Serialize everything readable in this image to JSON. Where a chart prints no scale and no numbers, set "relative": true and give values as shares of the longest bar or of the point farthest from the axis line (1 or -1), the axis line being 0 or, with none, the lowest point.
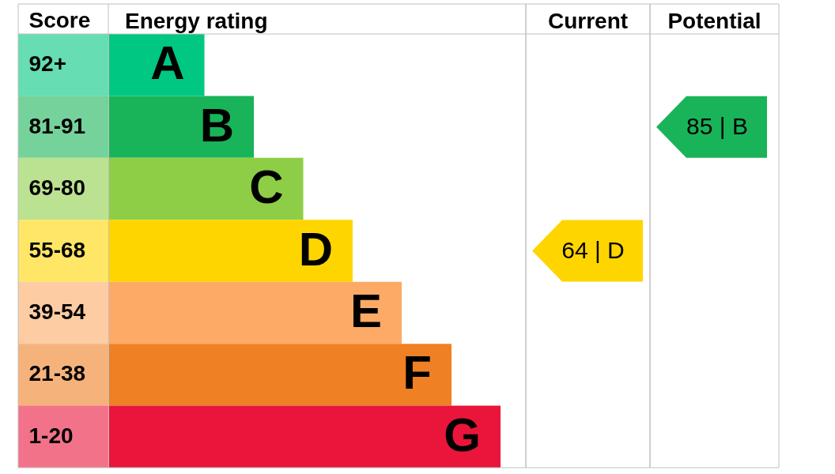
{
  "chart_data": [
    {
      "type": "bar",
      "orientation": "horizontal",
      "relative": true,
      "title": "Energy rating",
      "ylabel": "Score",
      "categories": [
        "92+",
        "81-91",
        "69-80",
        "55-68",
        "39-54",
        "21-38",
        "1-20"
      ],
      "values": [
        0.245,
        0.371,
        0.497,
        0.623,
        0.748,
        0.875,
        1
      ],
      "colors": [
        "#00c781",
        "#19b459",
        "#8dce46",
        "#ffd500",
        "#fcaa65",
        "#ef8023",
        "#e9153b"
      ],
      "annotations": [
        "A",
        "B",
        "C",
        "D",
        "E",
        "F",
        "G"
      ]
    },
    {
      "type": "other",
      "title": "Current",
      "values": [
        null,
        null,
        null,
        64,
        null,
        null,
        null
      ],
      "value_labels": [
        null,
        null,
        null,
        "64 | D",
        null,
        null,
        null
      ],
      "colors": [
        null,
        null,
        null,
        "#ffd500",
        null,
        null,
        null
      ]
    },
    {
      "type": "other",
      "title": "Potential",
      "values": [
        null,
        85,
        null,
        null,
        null,
        null,
        null
      ],
      "value_labels": [
        null,
        "85 | B",
        null,
        null,
        null,
        null,
        null
      ],
      "colors": [
        null,
        "#19b459",
        null,
        null,
        null,
        null,
        null
      ]
    }
  ]
}
